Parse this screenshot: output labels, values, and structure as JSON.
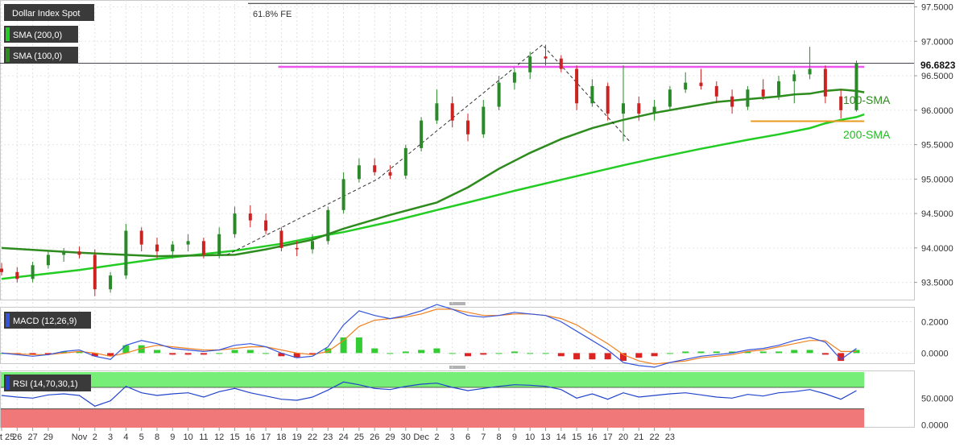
{
  "chart_data": {
    "type": "candlestick",
    "panels": {
      "price": {
        "labels": {
          "symbol": "Dollar Index Spot",
          "sma200": "SMA (200,0)",
          "sma100": "SMA (100,0)",
          "fib": "61.8% FE",
          "sma100_annot": "100-SMA",
          "sma200_annot": "200-SMA",
          "last_price": "96.6823"
        },
        "ylim": [
          93.25,
          97.6
        ],
        "ticks": [
          "97.5000",
          "97.0000",
          "96.5000",
          "96.0000",
          "95.5000",
          "95.0000",
          "94.5000",
          "94.0000",
          "93.5000"
        ],
        "tick_values": [
          97.5,
          97.0,
          96.5,
          96.0,
          95.5,
          95.0,
          94.5,
          94.0,
          93.5
        ],
        "current_price": 96.6823,
        "fib_level": 97.55,
        "resistance": {
          "value": 96.63,
          "from_day": 17.8,
          "to_day": 55.5
        },
        "support": {
          "value": 95.84,
          "from_day": 48.2,
          "to_day": 55.5
        },
        "trend_dash": [
          [
            14.5,
            93.9
          ],
          [
            24.2,
            95.0
          ],
          [
            34.8,
            96.95
          ],
          [
            40.4,
            95.55
          ]
        ],
        "sma100": [
          [
            0,
            94.0
          ],
          [
            5,
            93.93
          ],
          [
            10,
            93.88
          ],
          [
            15,
            93.9
          ],
          [
            17,
            93.98
          ],
          [
            20,
            94.12
          ],
          [
            22,
            94.28
          ],
          [
            25,
            94.48
          ],
          [
            28,
            94.66
          ],
          [
            30,
            94.88
          ],
          [
            32,
            95.15
          ],
          [
            34,
            95.38
          ],
          [
            36,
            95.58
          ],
          [
            38,
            95.74
          ],
          [
            40,
            95.86
          ],
          [
            42,
            95.96
          ],
          [
            44,
            96.04
          ],
          [
            46,
            96.12
          ],
          [
            48,
            96.16
          ],
          [
            50,
            96.2
          ],
          [
            51,
            96.23
          ],
          [
            52,
            96.24
          ],
          [
            53,
            96.28
          ],
          [
            54,
            96.3
          ],
          [
            55,
            96.28
          ],
          [
            55.5,
            96.26
          ]
        ],
        "sma200": [
          [
            0,
            93.55
          ],
          [
            5,
            93.68
          ],
          [
            10,
            93.84
          ],
          [
            15,
            93.96
          ],
          [
            18,
            94.06
          ],
          [
            20,
            94.15
          ],
          [
            22,
            94.23
          ],
          [
            25,
            94.38
          ],
          [
            28,
            94.55
          ],
          [
            30,
            94.66
          ],
          [
            33,
            94.83
          ],
          [
            36,
            94.99
          ],
          [
            40,
            95.2
          ],
          [
            42,
            95.3
          ],
          [
            45,
            95.44
          ],
          [
            48,
            95.57
          ],
          [
            50,
            95.65
          ],
          [
            52,
            95.74
          ],
          [
            53,
            95.81
          ],
          [
            54,
            95.86
          ],
          [
            55,
            95.9
          ],
          [
            55.5,
            95.94
          ]
        ],
        "candles": [
          {
            "o": 93.7,
            "h": 93.78,
            "l": 93.6,
            "c": 93.65
          },
          {
            "o": 93.65,
            "h": 93.72,
            "l": 93.5,
            "c": 93.55
          },
          {
            "o": 93.55,
            "h": 93.8,
            "l": 93.5,
            "c": 93.75
          },
          {
            "o": 93.75,
            "h": 93.95,
            "l": 93.7,
            "c": 93.9
          },
          {
            "o": 93.9,
            "h": 94.0,
            "l": 93.8,
            "c": 93.95
          },
          {
            "o": 93.95,
            "h": 94.02,
            "l": 93.85,
            "c": 93.9
          },
          {
            "o": 93.9,
            "h": 93.98,
            "l": 93.3,
            "c": 93.4
          },
          {
            "o": 93.4,
            "h": 93.65,
            "l": 93.35,
            "c": 93.6
          },
          {
            "o": 93.6,
            "h": 94.35,
            "l": 93.55,
            "c": 94.25
          },
          {
            "o": 94.25,
            "h": 94.3,
            "l": 93.95,
            "c": 94.05
          },
          {
            "o": 94.05,
            "h": 94.15,
            "l": 93.85,
            "c": 93.95
          },
          {
            "o": 93.95,
            "h": 94.1,
            "l": 93.85,
            "c": 94.05
          },
          {
            "o": 94.05,
            "h": 94.2,
            "l": 93.95,
            "c": 94.1
          },
          {
            "o": 94.1,
            "h": 94.15,
            "l": 93.85,
            "c": 93.9
          },
          {
            "o": 93.9,
            "h": 94.3,
            "l": 93.85,
            "c": 94.2
          },
          {
            "o": 94.2,
            "h": 94.6,
            "l": 94.15,
            "c": 94.5
          },
          {
            "o": 94.5,
            "h": 94.62,
            "l": 94.3,
            "c": 94.4
          },
          {
            "o": 94.4,
            "h": 94.5,
            "l": 94.2,
            "c": 94.25
          },
          {
            "o": 94.25,
            "h": 94.3,
            "l": 93.95,
            "c": 94.0
          },
          {
            "o": 94.0,
            "h": 94.1,
            "l": 93.88,
            "c": 93.98
          },
          {
            "o": 93.98,
            "h": 94.2,
            "l": 93.92,
            "c": 94.1
          },
          {
            "o": 94.1,
            "h": 94.6,
            "l": 94.05,
            "c": 94.55
          },
          {
            "o": 94.55,
            "h": 95.1,
            "l": 94.5,
            "c": 95.0
          },
          {
            "o": 95.0,
            "h": 95.3,
            "l": 94.95,
            "c": 95.2
          },
          {
            "o": 95.2,
            "h": 95.3,
            "l": 95.05,
            "c": 95.1
          },
          {
            "o": 95.1,
            "h": 95.2,
            "l": 95.0,
            "c": 95.05
          },
          {
            "o": 95.05,
            "h": 95.5,
            "l": 95.0,
            "c": 95.45
          },
          {
            "o": 95.45,
            "h": 95.9,
            "l": 95.4,
            "c": 95.85
          },
          {
            "o": 95.85,
            "h": 96.3,
            "l": 95.8,
            "c": 96.1
          },
          {
            "o": 96.1,
            "h": 96.2,
            "l": 95.75,
            "c": 95.85
          },
          {
            "o": 95.85,
            "h": 95.95,
            "l": 95.55,
            "c": 95.65
          },
          {
            "o": 95.65,
            "h": 96.15,
            "l": 95.6,
            "c": 96.05
          },
          {
            "o": 96.05,
            "h": 96.5,
            "l": 96.0,
            "c": 96.4
          },
          {
            "o": 96.4,
            "h": 96.6,
            "l": 96.3,
            "c": 96.55
          },
          {
            "o": 96.55,
            "h": 96.85,
            "l": 96.45,
            "c": 96.78
          },
          {
            "o": 96.78,
            "h": 96.95,
            "l": 96.65,
            "c": 96.75
          },
          {
            "o": 96.75,
            "h": 96.8,
            "l": 96.55,
            "c": 96.6
          },
          {
            "o": 96.6,
            "h": 96.65,
            "l": 96.0,
            "c": 96.1
          },
          {
            "o": 96.1,
            "h": 96.45,
            "l": 96.05,
            "c": 96.35
          },
          {
            "o": 96.35,
            "h": 96.4,
            "l": 95.85,
            "c": 95.95
          },
          {
            "o": 95.95,
            "h": 96.65,
            "l": 95.55,
            "c": 96.1
          },
          {
            "o": 96.1,
            "h": 96.2,
            "l": 95.85,
            "c": 95.95
          },
          {
            "o": 95.95,
            "h": 96.15,
            "l": 95.85,
            "c": 96.05
          },
          {
            "o": 96.05,
            "h": 96.35,
            "l": 96.0,
            "c": 96.3
          },
          {
            "o": 96.3,
            "h": 96.55,
            "l": 96.25,
            "c": 96.4
          },
          {
            "o": 96.4,
            "h": 96.6,
            "l": 96.3,
            "c": 96.35
          },
          {
            "o": 96.35,
            "h": 96.42,
            "l": 96.1,
            "c": 96.2
          },
          {
            "o": 96.2,
            "h": 96.3,
            "l": 95.95,
            "c": 96.05
          },
          {
            "o": 96.05,
            "h": 96.35,
            "l": 96.0,
            "c": 96.3
          },
          {
            "o": 96.3,
            "h": 96.45,
            "l": 96.15,
            "c": 96.2
          },
          {
            "o": 96.2,
            "h": 96.5,
            "l": 96.15,
            "c": 96.42
          },
          {
            "o": 96.42,
            "h": 96.58,
            "l": 96.1,
            "c": 96.52
          },
          {
            "o": 96.52,
            "h": 96.92,
            "l": 96.45,
            "c": 96.6
          },
          {
            "o": 96.6,
            "h": 96.65,
            "l": 96.1,
            "c": 96.2
          },
          {
            "o": 96.2,
            "h": 96.3,
            "l": 95.88,
            "c": 96.0
          },
          {
            "o": 96.0,
            "h": 96.72,
            "l": 95.98,
            "c": 96.68
          }
        ]
      },
      "macd": {
        "label": "MACD (12,26,9)",
        "ylim": [
          -0.07,
          0.29
        ],
        "ticks": [
          "0.2000",
          "0.0000"
        ],
        "tick_values": [
          0.2,
          0.0
        ],
        "macd": [
          0.0,
          -0.01,
          -0.02,
          -0.01,
          0.01,
          0.02,
          -0.02,
          -0.04,
          0.05,
          0.08,
          0.06,
          0.03,
          0.02,
          0.01,
          0.02,
          0.05,
          0.06,
          0.04,
          0.0,
          -0.03,
          -0.02,
          0.04,
          0.18,
          0.27,
          0.24,
          0.22,
          0.24,
          0.27,
          0.31,
          0.28,
          0.24,
          0.23,
          0.24,
          0.26,
          0.25,
          0.24,
          0.2,
          0.14,
          0.08,
          0.02,
          -0.06,
          -0.08,
          -0.09,
          -0.06,
          -0.04,
          -0.02,
          -0.01,
          -0.0,
          0.02,
          0.03,
          0.05,
          0.08,
          0.1,
          0.07,
          -0.04,
          0.03
        ],
        "signal": [
          0.0,
          -0.005,
          -0.01,
          -0.01,
          0.0,
          0.01,
          0.0,
          -0.02,
          0.0,
          0.03,
          0.05,
          0.04,
          0.03,
          0.02,
          0.02,
          0.03,
          0.04,
          0.04,
          0.02,
          0.0,
          -0.01,
          0.01,
          0.08,
          0.17,
          0.21,
          0.22,
          0.23,
          0.25,
          0.28,
          0.28,
          0.26,
          0.24,
          0.24,
          0.25,
          0.25,
          0.24,
          0.22,
          0.18,
          0.12,
          0.06,
          -0.01,
          -0.05,
          -0.07,
          -0.06,
          -0.05,
          -0.03,
          -0.02,
          -0.01,
          0.01,
          0.02,
          0.04,
          0.06,
          0.08,
          0.08,
          0.01,
          0.01
        ],
        "hist": [
          0.0,
          -0.01,
          -0.01,
          -0.01,
          0.01,
          0.01,
          -0.02,
          -0.02,
          0.05,
          0.05,
          0.02,
          -0.01,
          -0.01,
          -0.01,
          0.0,
          0.02,
          0.02,
          0.0,
          -0.02,
          -0.03,
          -0.01,
          0.03,
          0.1,
          0.1,
          0.03,
          0.0,
          0.01,
          0.02,
          0.03,
          0.0,
          -0.02,
          -0.01,
          0.0,
          0.01,
          0.0,
          0.0,
          -0.02,
          -0.04,
          -0.04,
          -0.04,
          -0.05,
          -0.03,
          -0.02,
          0.0,
          0.01,
          0.01,
          0.01,
          0.01,
          0.01,
          0.01,
          0.01,
          0.02,
          0.02,
          -0.01,
          -0.05,
          0.02
        ]
      },
      "rsi": {
        "label": "RSI (14,70,30,1)",
        "ylim": [
          -5,
          100
        ],
        "ticks": [
          "50.0000",
          "0.0000"
        ],
        "tick_values": [
          50,
          0
        ],
        "overbought": 70,
        "oversold": 30,
        "values": [
          55,
          52,
          50,
          56,
          58,
          55,
          35,
          45,
          72,
          60,
          55,
          58,
          60,
          52,
          62,
          68,
          60,
          54,
          48,
          46,
          52,
          65,
          80,
          75,
          68,
          66,
          72,
          76,
          78,
          70,
          64,
          68,
          72,
          75,
          74,
          72,
          66,
          50,
          58,
          48,
          60,
          52,
          55,
          58,
          60,
          56,
          52,
          50,
          57,
          54,
          60,
          62,
          66,
          58,
          48,
          64
        ]
      }
    },
    "x_axis": {
      "days": [
        0,
        1,
        2,
        3,
        5,
        6,
        7,
        8,
        9,
        10,
        11,
        12,
        13,
        14,
        15,
        16,
        17,
        18,
        19,
        20,
        21,
        22,
        23,
        24,
        25,
        26,
        27,
        28,
        29,
        30,
        31,
        32,
        33,
        34,
        35,
        36,
        37,
        38,
        39,
        40,
        41,
        42,
        43,
        44,
        45,
        46,
        47,
        48,
        49,
        50,
        51,
        52,
        53,
        54,
        55,
        56
      ],
      "labels": [
        "Oct 25",
        "26",
        "27",
        "29",
        "Nov",
        "2",
        "3",
        "4",
        "5",
        "8",
        "9",
        "10",
        "11",
        "12",
        "15",
        "16",
        "17",
        "18",
        "19",
        "22",
        "23",
        "24",
        "25",
        "26",
        "29",
        "30",
        "Dec",
        "2",
        "3",
        "6",
        "7",
        "8",
        "9",
        "10",
        "13",
        "14",
        "15",
        "16",
        "17",
        "20",
        "21",
        "22",
        "23"
      ]
    },
    "colors": {
      "up": "#2a8a2a",
      "down": "#cc2222",
      "sma100": "#2e8b1e",
      "sma200": "#22cc22",
      "resistance": "#ee55ee",
      "support": "#e89a20",
      "macd_line": "#3355dd",
      "signal_line": "#f08020",
      "hist_pos": "#33cc33",
      "hist_neg": "#dd2222",
      "rsi_line": "#2244cc",
      "overbought_zone": "#77ee77",
      "oversold_zone": "#f07878"
    }
  }
}
